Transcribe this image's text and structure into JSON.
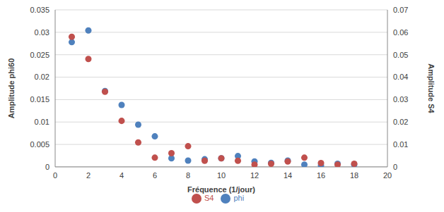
{
  "chart_data": {
    "type": "scatter",
    "x_label": "Fréquence (1/jour)",
    "y_label": "Amplitude phi60",
    "y2_label": "Amplitude S4",
    "x": [
      1,
      2,
      3,
      4,
      5,
      6,
      7,
      8,
      9,
      10,
      11,
      12,
      13,
      14,
      15,
      16,
      17,
      18
    ],
    "xlim": [
      0,
      20
    ],
    "xticks": [
      0,
      2,
      4,
      6,
      8,
      10,
      12,
      14,
      16,
      18,
      20
    ],
    "ylim": [
      0,
      0.035
    ],
    "yticks": [
      0,
      0.005,
      0.01,
      0.015,
      0.02,
      0.025,
      0.03,
      0.035
    ],
    "y2lim": [
      0,
      0.07
    ],
    "y2ticks": [
      0,
      0.01,
      0.02,
      0.03,
      0.04,
      0.05,
      0.06,
      0.07
    ],
    "grid": true,
    "legend": "bottom",
    "marker": "circle",
    "series": [
      {
        "name": "phi",
        "color": "#4f81bd",
        "values": [
          0.0278,
          0.0304,
          0.0169,
          0.0138,
          0.0094,
          0.0068,
          0.0019,
          0.0014,
          0.0017,
          0.0019,
          0.0024,
          0.0012,
          0.0009,
          0.0014,
          0.0005,
          0.0003,
          0.0007,
          0.0005
        ]
      },
      {
        "name": "S4",
        "color": "#c0504d",
        "axis": "y2",
        "values": [
          0.058,
          0.0481,
          0.0335,
          0.0205,
          0.0109,
          0.0041,
          0.0061,
          0.0092,
          0.0027,
          0.0038,
          0.0027,
          0.001,
          0.0014,
          0.0024,
          0.0041,
          0.0017,
          0.001,
          0.0014
        ]
      }
    ]
  }
}
